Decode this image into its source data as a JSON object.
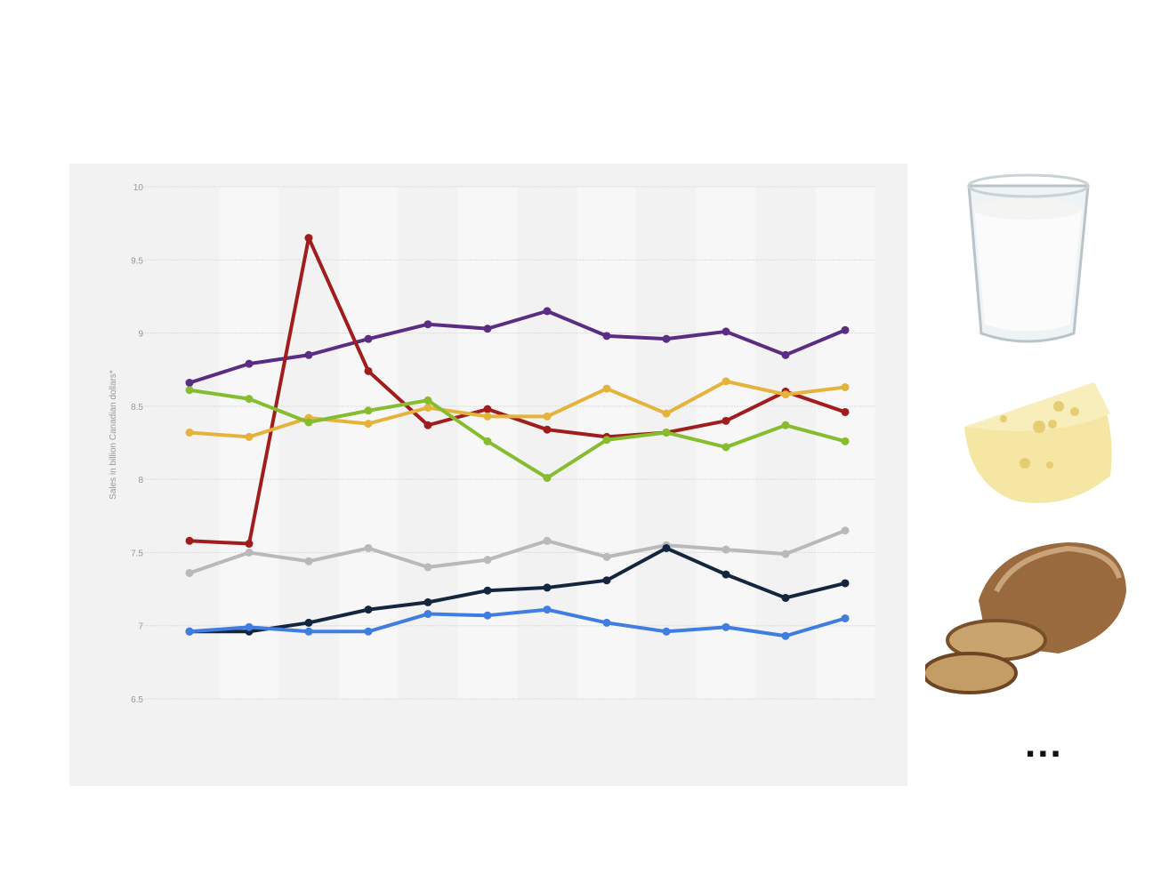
{
  "chart_data": {
    "type": "line",
    "title": "",
    "xlabel": "",
    "ylabel": "Sales in billion Canadian dollars*",
    "ylim": [
      6.5,
      10
    ],
    "yticks": [
      "6.5",
      "7",
      "7.5",
      "8",
      "8.5",
      "9",
      "9.5",
      "10"
    ],
    "grid": true,
    "legend": "none",
    "x": [
      1,
      2,
      3,
      4,
      5,
      6,
      7,
      8,
      9,
      10,
      11,
      12
    ],
    "series": [
      {
        "color": "#5b2c83",
        "values": [
          8.66,
          8.79,
          8.85,
          8.96,
          9.06,
          9.03,
          9.15,
          8.98,
          8.96,
          9.01,
          8.85,
          9.02
        ]
      },
      {
        "color": "#a01d1d",
        "values": [
          7.58,
          7.56,
          9.65,
          8.74,
          8.37,
          8.48,
          8.34,
          8.29,
          8.32,
          8.4,
          8.6,
          8.46
        ]
      },
      {
        "color": "#e5b33b",
        "values": [
          8.32,
          8.29,
          8.42,
          8.38,
          8.49,
          8.43,
          8.43,
          8.62,
          8.45,
          8.67,
          8.58,
          8.63
        ]
      },
      {
        "color": "#86bc2f",
        "values": [
          8.61,
          8.55,
          8.39,
          8.47,
          8.54,
          8.26,
          8.01,
          8.27,
          8.32,
          8.22,
          8.37,
          8.26
        ]
      },
      {
        "color": "#b9b9b9",
        "values": [
          7.36,
          7.5,
          7.44,
          7.53,
          7.4,
          7.45,
          7.58,
          7.47,
          7.55,
          7.52,
          7.49,
          7.65
        ]
      },
      {
        "color": "#14263f",
        "values": [
          6.96,
          6.96,
          7.02,
          7.11,
          7.16,
          7.24,
          7.26,
          7.31,
          7.53,
          7.35,
          7.19,
          7.29
        ]
      },
      {
        "color": "#3f7de0",
        "values": [
          6.96,
          6.99,
          6.96,
          6.96,
          7.08,
          7.07,
          7.11,
          7.02,
          6.96,
          6.99,
          6.93,
          7.05
        ]
      }
    ]
  },
  "side": {
    "images": [
      "milk-glass",
      "cheese",
      "bread"
    ],
    "more": "..."
  }
}
